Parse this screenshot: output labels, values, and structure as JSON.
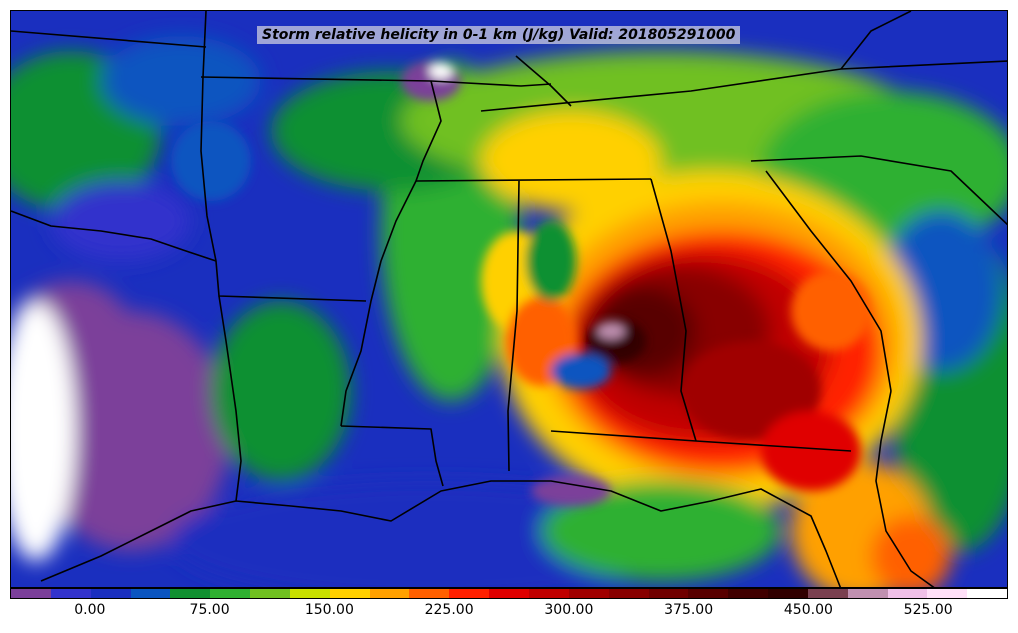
{
  "title": "Storm relative helicity in 0-1 km (J/kg) Valid: 201805291000",
  "colorbar": {
    "colors": [
      "#7b3f9a",
      "#3333cc",
      "#1a2fbf",
      "#0a55c0",
      "#109030",
      "#2fb030",
      "#70c020",
      "#c8e000",
      "#ffd000",
      "#ffa000",
      "#ff6000",
      "#ff2000",
      "#e00000",
      "#c00000",
      "#a00000",
      "#880000",
      "#700000",
      "#580000",
      "#400000",
      "#300000",
      "#7a4050",
      "#c090b0",
      "#f0c0e8",
      "#ffe0f8",
      "#ffffff"
    ],
    "tick_values": [
      "0.00",
      "75.00",
      "150.00",
      "225.00",
      "300.00",
      "375.00",
      "450.00",
      "525.00"
    ],
    "tick_fractions": [
      0.08,
      0.2,
      0.32,
      0.44,
      0.56,
      0.68,
      0.8,
      0.92
    ]
  }
}
